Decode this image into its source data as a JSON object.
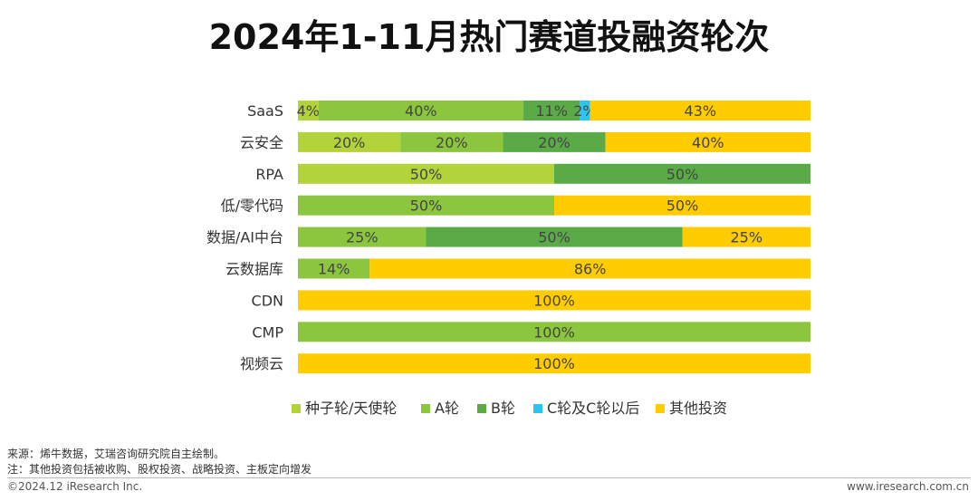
{
  "chart_data": {
    "type": "bar",
    "orientation": "horizontal",
    "stacked": "percent",
    "title": "2024年1-11月热门赛道投融资轮次",
    "categories": [
      "SaaS",
      "云安全",
      "RPA",
      "低/零代码",
      "数据/AI中台",
      "云数据库",
      "CDN",
      "CMP",
      "视频云"
    ],
    "series": [
      {
        "name": "种子轮/天使轮",
        "color": "#b3d33b",
        "values": [
          4,
          20,
          50,
          0,
          0,
          0,
          0,
          0,
          0
        ]
      },
      {
        "name": "A轮",
        "color": "#8cc63f",
        "values": [
          40,
          20,
          0,
          50,
          25,
          14,
          0,
          100,
          0
        ]
      },
      {
        "name": "B轮",
        "color": "#5aab47",
        "values": [
          11,
          20,
          50,
          0,
          50,
          0,
          0,
          0,
          0
        ]
      },
      {
        "name": "C轮及C轮以后",
        "color": "#2ec4ef",
        "values": [
          2,
          0,
          0,
          0,
          0,
          0,
          0,
          0,
          0
        ]
      },
      {
        "name": "其他投资",
        "color": "#ffcc00",
        "values": [
          43,
          40,
          0,
          50,
          25,
          86,
          100,
          0,
          100
        ]
      }
    ],
    "label_format": "{v}%",
    "legend_position": "bottom",
    "xlim": [
      0,
      100
    ]
  },
  "notes": {
    "source": "来源：烯牛数据，艾瑞咨询研究院自主绘制。",
    "note": "注：其他投资包括被收购、股权投资、战略投资、主板定向增发"
  },
  "footer": {
    "copyright": "©2024.12 iResearch Inc.",
    "website": "www.iresearch.com.cn"
  }
}
